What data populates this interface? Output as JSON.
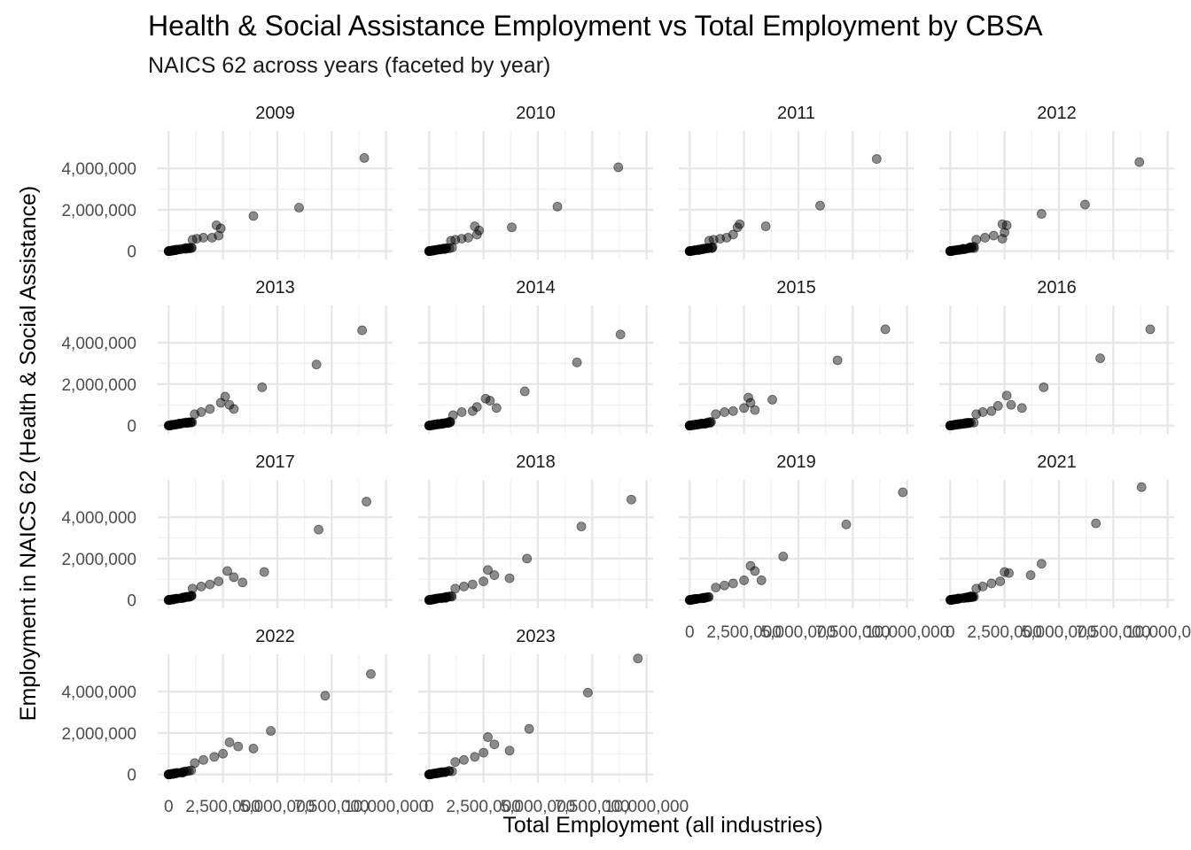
{
  "chart_data": {
    "type": "scatter",
    "title": "Health & Social Assistance Employment vs Total Employment by CBSA",
    "subtitle": "NAICS 62 across years (faceted by year)",
    "xlabel": "Total Employment (all industries)",
    "ylabel": "Employment in NAICS 62 (Health & Social Assistance)",
    "xlim": [
      -500000,
      10300000
    ],
    "ylim": [
      -400000,
      5800000
    ],
    "x_ticks": [
      0,
      2500000,
      5000000,
      7500000,
      10000000
    ],
    "x_tick_labels": [
      "0",
      "2,500,000",
      "5,000,000",
      "7,500,000",
      "10,000,000"
    ],
    "y_ticks": [
      0,
      2000000,
      4000000
    ],
    "y_tick_labels": [
      "0",
      "2,000,000",
      "4,000,000"
    ],
    "grid": true,
    "point_color": "#000000",
    "facets": [
      {
        "label": "2009",
        "points": [
          [
            9000000,
            4500000
          ],
          [
            6000000,
            2100000
          ],
          [
            3900000,
            1700000
          ],
          [
            2400000,
            1100000
          ],
          [
            2200000,
            1250000
          ],
          [
            2300000,
            750000
          ],
          [
            2000000,
            650000
          ],
          [
            1600000,
            650000
          ],
          [
            1300000,
            600000
          ],
          [
            1100000,
            550000
          ]
        ]
      },
      {
        "label": "2010",
        "points": [
          [
            8700000,
            4050000
          ],
          [
            5900000,
            2150000
          ],
          [
            3800000,
            1150000
          ],
          [
            2300000,
            1000000
          ],
          [
            2100000,
            1200000
          ],
          [
            2200000,
            800000
          ],
          [
            1800000,
            650000
          ],
          [
            1500000,
            600000
          ],
          [
            1200000,
            550000
          ],
          [
            1000000,
            500000
          ]
        ]
      },
      {
        "label": "2011",
        "points": [
          [
            8600000,
            4450000
          ],
          [
            6000000,
            2200000
          ],
          [
            3500000,
            1200000
          ],
          [
            2300000,
            1300000
          ],
          [
            2200000,
            1150000
          ],
          [
            2000000,
            800000
          ],
          [
            1700000,
            650000
          ],
          [
            1400000,
            600000
          ],
          [
            1100000,
            550000
          ],
          [
            900000,
            500000
          ]
        ]
      },
      {
        "label": "2012",
        "points": [
          [
            8700000,
            4300000
          ],
          [
            6200000,
            2250000
          ],
          [
            4200000,
            1800000
          ],
          [
            2600000,
            1250000
          ],
          [
            2400000,
            1300000
          ],
          [
            2500000,
            900000
          ],
          [
            2400000,
            600000
          ],
          [
            2000000,
            750000
          ],
          [
            1600000,
            650000
          ],
          [
            1200000,
            550000
          ]
        ]
      },
      {
        "label": "2013",
        "points": [
          [
            8900000,
            4600000
          ],
          [
            6800000,
            2950000
          ],
          [
            4300000,
            1850000
          ],
          [
            2600000,
            1400000
          ],
          [
            2800000,
            1000000
          ],
          [
            3000000,
            800000
          ],
          [
            2400000,
            1100000
          ],
          [
            1900000,
            800000
          ],
          [
            1500000,
            650000
          ],
          [
            1200000,
            550000
          ]
        ]
      },
      {
        "label": "2014",
        "points": [
          [
            8800000,
            4400000
          ],
          [
            6800000,
            3050000
          ],
          [
            4400000,
            1650000
          ],
          [
            2600000,
            1300000
          ],
          [
            2800000,
            1200000
          ],
          [
            3100000,
            850000
          ],
          [
            2200000,
            900000
          ],
          [
            2000000,
            700000
          ],
          [
            1500000,
            650000
          ],
          [
            1100000,
            500000
          ]
        ]
      },
      {
        "label": "2015",
        "points": [
          [
            9000000,
            4650000
          ],
          [
            6800000,
            3150000
          ],
          [
            3800000,
            1250000
          ],
          [
            2700000,
            1350000
          ],
          [
            2800000,
            1100000
          ],
          [
            3000000,
            750000
          ],
          [
            2500000,
            850000
          ],
          [
            2000000,
            700000
          ],
          [
            1600000,
            650000
          ],
          [
            1200000,
            550000
          ]
        ]
      },
      {
        "label": "2016",
        "points": [
          [
            9200000,
            4650000
          ],
          [
            6900000,
            3250000
          ],
          [
            4300000,
            1850000
          ],
          [
            2600000,
            1450000
          ],
          [
            2800000,
            1000000
          ],
          [
            3300000,
            850000
          ],
          [
            2200000,
            950000
          ],
          [
            1900000,
            700000
          ],
          [
            1500000,
            650000
          ],
          [
            1200000,
            550000
          ]
        ]
      },
      {
        "label": "2017",
        "points": [
          [
            9100000,
            4750000
          ],
          [
            6900000,
            3400000
          ],
          [
            4400000,
            1350000
          ],
          [
            2700000,
            1400000
          ],
          [
            3000000,
            1100000
          ],
          [
            3400000,
            850000
          ],
          [
            2300000,
            900000
          ],
          [
            1900000,
            750000
          ],
          [
            1500000,
            650000
          ],
          [
            1100000,
            550000
          ]
        ]
      },
      {
        "label": "2018",
        "points": [
          [
            9300000,
            4850000
          ],
          [
            7000000,
            3550000
          ],
          [
            4500000,
            2000000
          ],
          [
            2700000,
            1450000
          ],
          [
            3000000,
            1200000
          ],
          [
            3700000,
            1050000
          ],
          [
            2500000,
            900000
          ],
          [
            2000000,
            750000
          ],
          [
            1600000,
            650000
          ],
          [
            1200000,
            550000
          ]
        ]
      },
      {
        "label": "2019",
        "points": [
          [
            9800000,
            5200000
          ],
          [
            7200000,
            3650000
          ],
          [
            4300000,
            2100000
          ],
          [
            2800000,
            1650000
          ],
          [
            3000000,
            1400000
          ],
          [
            3300000,
            950000
          ],
          [
            2500000,
            950000
          ],
          [
            2000000,
            800000
          ],
          [
            1600000,
            700000
          ],
          [
            1200000,
            600000
          ]
        ]
      },
      {
        "label": "2021",
        "points": [
          [
            8800000,
            5450000
          ],
          [
            6700000,
            3700000
          ],
          [
            4200000,
            1750000
          ],
          [
            2500000,
            1350000
          ],
          [
            2700000,
            1300000
          ],
          [
            3700000,
            1200000
          ],
          [
            2300000,
            900000
          ],
          [
            1900000,
            800000
          ],
          [
            1500000,
            650000
          ],
          [
            1200000,
            550000
          ]
        ]
      },
      {
        "label": "2022",
        "points": [
          [
            9300000,
            4850000
          ],
          [
            7200000,
            3800000
          ],
          [
            4700000,
            2100000
          ],
          [
            2800000,
            1550000
          ],
          [
            3200000,
            1350000
          ],
          [
            3900000,
            1250000
          ],
          [
            2500000,
            1000000
          ],
          [
            2100000,
            850000
          ],
          [
            1600000,
            700000
          ],
          [
            1200000,
            550000
          ]
        ]
      },
      {
        "label": "2023",
        "points": [
          [
            9600000,
            5600000
          ],
          [
            7300000,
            3950000
          ],
          [
            4600000,
            2200000
          ],
          [
            2700000,
            1800000
          ],
          [
            3000000,
            1450000
          ],
          [
            3700000,
            1150000
          ],
          [
            2500000,
            1050000
          ],
          [
            2100000,
            850000
          ],
          [
            1600000,
            700000
          ],
          [
            1200000,
            600000
          ]
        ]
      }
    ]
  }
}
